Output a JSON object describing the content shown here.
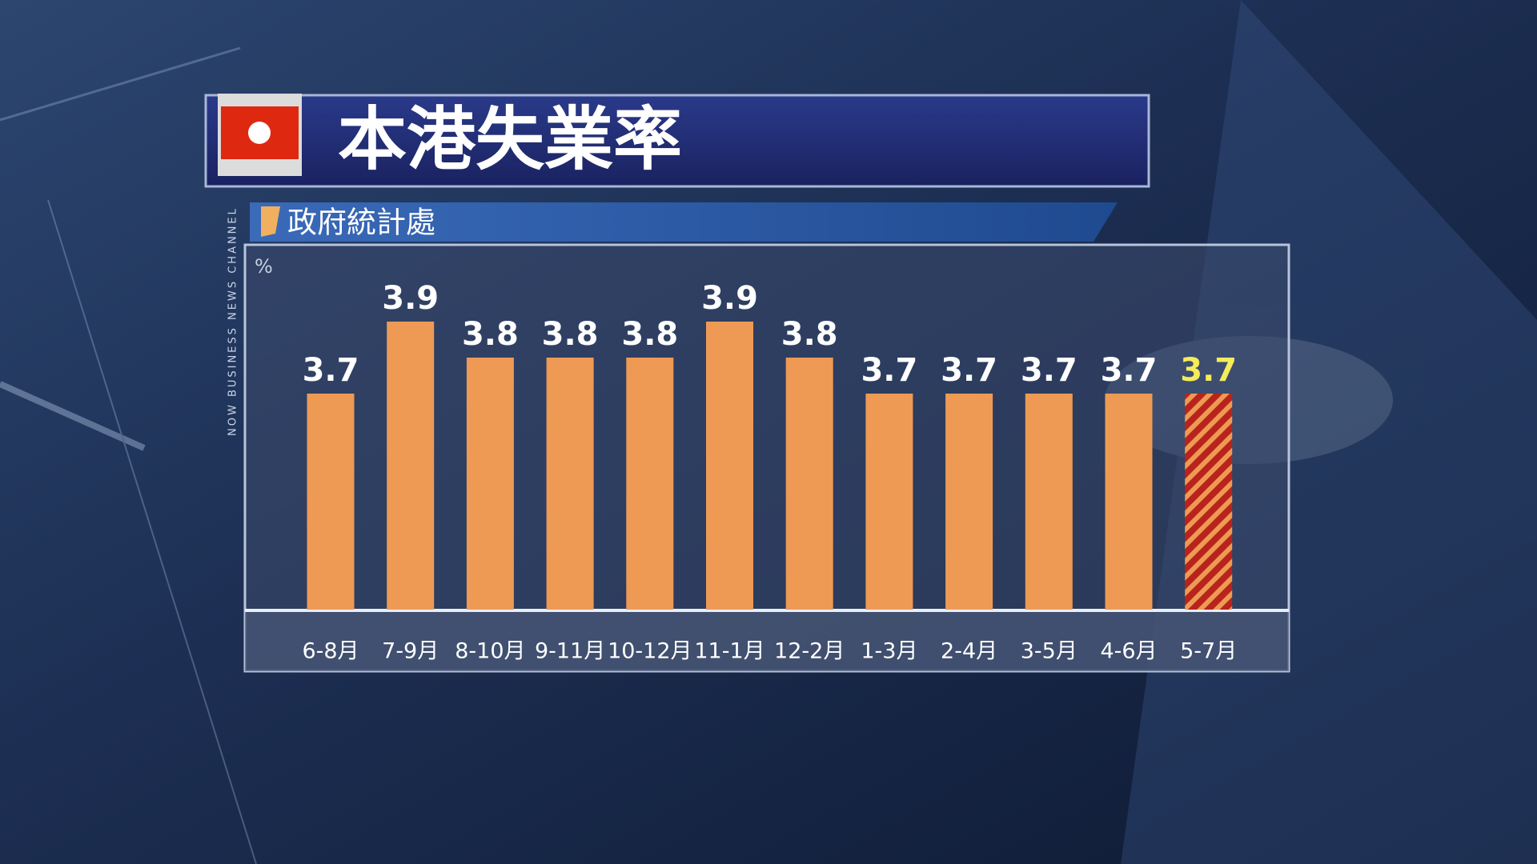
{
  "chart_data": {
    "type": "bar",
    "title": "本港失業率",
    "subtitle": "政府統計處",
    "channel": "NOW BUSINESS NEWS CHANNEL",
    "y_unit": "%",
    "categories": [
      "6-8月",
      "7-9月",
      "8-10月",
      "9-11月",
      "10-12月",
      "11-1月",
      "12-2月",
      "1-3月",
      "2-4月",
      "3-5月",
      "4-6月",
      "5-7月"
    ],
    "values": [
      3.7,
      3.9,
      3.8,
      3.8,
      3.8,
      3.9,
      3.8,
      3.7,
      3.7,
      3.7,
      3.7,
      3.7
    ],
    "colors": [
      "#ee9a55",
      "#ee9a55",
      "#ee9a55",
      "#ee9a55",
      "#ee9a55",
      "#ee9a55",
      "#ee9a55",
      "#ee9a55",
      "#ee9a55",
      "#ee9a55",
      "#ee9a55",
      "#b8241c"
    ],
    "hatched": [
      false,
      false,
      false,
      false,
      false,
      false,
      false,
      false,
      false,
      false,
      false,
      true
    ],
    "label_colors": [
      "#ffffff",
      "#ffffff",
      "#ffffff",
      "#ffffff",
      "#ffffff",
      "#ffffff",
      "#ffffff",
      "#ffffff",
      "#ffffff",
      "#ffffff",
      "#ffffff",
      "#f4ec5a"
    ],
    "ylim": [
      3.1,
      4.1
    ]
  }
}
